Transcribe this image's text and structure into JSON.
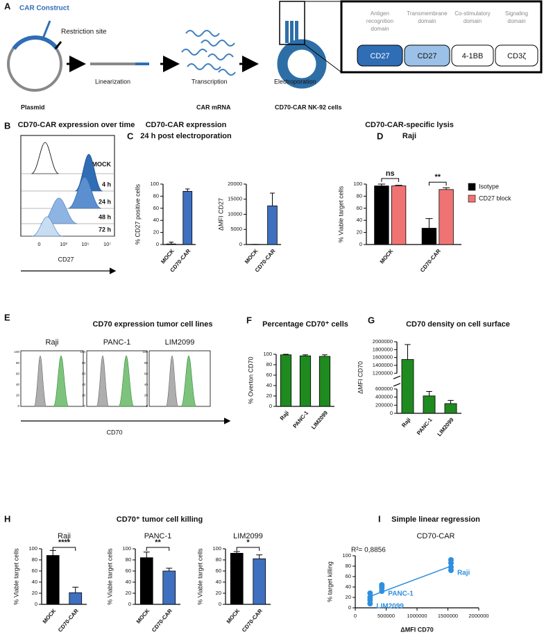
{
  "panels": [
    {
      "label": "A"
    },
    {
      "label": "B",
      "title": "CD70-CAR expression over time"
    },
    {
      "label": "C",
      "title": [
        "CD70-CAR expression",
        "24 h post electroporation"
      ]
    },
    {
      "label": "D",
      "title": "CD70-CAR-specific lysis",
      "subtitle": "Raji"
    },
    {
      "label": "E",
      "title": "CD70 expression tumor cell lines"
    },
    {
      "label": "F",
      "title": "Percentage CD70⁺ cells"
    },
    {
      "label": "G",
      "title": "CD70 density on cell surface"
    },
    {
      "label": "H",
      "title": "CD70⁺ tumor cell killing"
    },
    {
      "label": "I",
      "title": "Simple linear regression"
    }
  ],
  "diagram": {
    "construct": "CAR Construct",
    "restriction": "Restriction site",
    "steps": [
      "Linearization",
      "Transcription",
      "Electroporation"
    ],
    "stages": [
      "Plasmid",
      "CAR mRNA",
      "CD70-CAR NK-92 cells"
    ],
    "domains": [
      {
        "name": [
          "Antigen",
          "recognition",
          "domain"
        ],
        "box": "CD27"
      },
      {
        "name": [
          "Transmembrane",
          "domain"
        ],
        "box": "CD27"
      },
      {
        "name": [
          "Co-stimulatory",
          "domain"
        ],
        "box": "4-1BB"
      },
      {
        "name": [
          "Signaling",
          "domain"
        ],
        "box": "CD3ζ"
      }
    ]
  },
  "panel_b": {
    "rows": [
      "MOCK",
      "4 h",
      "24 h",
      "48 h",
      "72 h"
    ],
    "x_tick_labels": [
      "0",
      "10³",
      "10⁵",
      "10⁷"
    ],
    "xlabel": "CD27"
  },
  "panel_e": {
    "samples": [
      "Raji",
      "PANC-1",
      "LIM2099"
    ],
    "yticks": [
      0,
      20,
      40,
      60,
      80,
      100
    ],
    "xlabel": "CD70"
  },
  "chart_data": [
    {
      "type": "bar",
      "ylabel": "% CD27 positive cells",
      "categories": [
        "MOCK",
        "CD70-CAR"
      ],
      "values": [
        1,
        88
      ],
      "errors": [
        3,
        4
      ],
      "colors": [
        "#3f6fbf",
        "#3f6fbf"
      ],
      "ylim": [
        0,
        100
      ],
      "yticks": [
        0,
        20,
        40,
        60,
        80,
        100
      ]
    },
    {
      "type": "bar",
      "ylabel": "ΔMFI CD27",
      "categories": [
        "MOCK",
        "CD70-CAR"
      ],
      "values": [
        50,
        12800
      ],
      "errors": [
        0,
        4200
      ],
      "colors": [
        "#3f6fbf",
        "#3f6fbf"
      ],
      "ylim": [
        0,
        20000
      ],
      "yticks": [
        0,
        5000,
        10000,
        15000,
        20000
      ]
    },
    {
      "type": "grouped_bar",
      "ylabel": "% Viable target cells",
      "categories": [
        "MOCK",
        "CD70-CAR"
      ],
      "series": [
        {
          "name": "Isotype",
          "color": "#000000",
          "values": [
            97,
            27
          ],
          "errors": [
            3,
            16
          ]
        },
        {
          "name": "CD27 block",
          "color": "#f07373",
          "values": [
            97,
            91
          ],
          "errors": [
            1,
            3
          ]
        }
      ],
      "significance": [
        "ns",
        "**"
      ],
      "ylim": [
        0,
        100
      ],
      "yticks": [
        0,
        20,
        40,
        60,
        80,
        100
      ]
    },
    {
      "type": "bar",
      "ylabel": "% Overton CD70",
      "categories": [
        "Raji",
        "PANC-1",
        "LIM2099"
      ],
      "values": [
        99,
        97,
        96
      ],
      "errors": [
        1,
        2,
        3
      ],
      "colors": [
        "#1f8a1f",
        "#1f8a1f",
        "#1f8a1f"
      ],
      "ylim": [
        0,
        100
      ],
      "yticks": [
        0,
        20,
        40,
        60,
        80,
        100
      ]
    },
    {
      "type": "bar",
      "ylabel": "ΔMFI CD70",
      "categories": [
        "Raji",
        "PANC-1",
        "LIM2099"
      ],
      "values": [
        1550000,
        430000,
        240000
      ],
      "errors": [
        380000,
        110000,
        80000
      ],
      "colors": [
        "#1f8a1f",
        "#1f8a1f",
        "#1f8a1f"
      ],
      "ylim": [
        0,
        2000000
      ],
      "ybreak": [
        600000,
        1200000
      ],
      "yticks": [
        0,
        200000,
        400000,
        600000,
        1200000,
        1400000,
        1600000,
        1800000,
        2000000
      ]
    },
    {
      "type": "bar",
      "subtitle": "Raji",
      "ylabel": "% Viable target cells",
      "categories": [
        "MOCK",
        "CD70-CAR"
      ],
      "values": [
        88,
        21
      ],
      "errors": [
        9,
        10
      ],
      "colors": [
        "#000000",
        "#3f6fbf"
      ],
      "significance": "****",
      "ylim": [
        0,
        100
      ],
      "yticks": [
        0,
        20,
        40,
        60,
        80,
        100
      ]
    },
    {
      "type": "bar",
      "subtitle": "PANC-1",
      "ylabel": "% Viable target cells",
      "categories": [
        "MOCK",
        "CD70-CAR"
      ],
      "values": [
        84,
        60
      ],
      "errors": [
        10,
        5
      ],
      "colors": [
        "#000000",
        "#3f6fbf"
      ],
      "significance": "**",
      "ylim": [
        0,
        100
      ],
      "yticks": [
        0,
        20,
        40,
        60,
        80,
        100
      ]
    },
    {
      "type": "bar",
      "subtitle": "LIM2099",
      "ylabel": "% Viable target cells",
      "categories": [
        "MOCK",
        "CD70-CAR"
      ],
      "values": [
        92,
        82
      ],
      "errors": [
        3,
        7
      ],
      "colors": [
        "#000000",
        "#3f6fbf"
      ],
      "significance": "*",
      "ylim": [
        0,
        100
      ],
      "yticks": [
        0,
        20,
        40,
        60,
        80,
        100
      ]
    },
    {
      "type": "scatter",
      "subtitle": "CD70-CAR",
      "annotation": "R²= 0,8856",
      "xlabel": "ΔMFI CD70",
      "ylabel": "% target killing",
      "color": "#2f8fdf",
      "series": [
        {
          "name": "LIM2099",
          "x": [
            240000,
            240000,
            240000,
            240000
          ],
          "y": [
            8,
            15,
            20,
            28
          ]
        },
        {
          "name": "PANC-1",
          "x": [
            430000,
            430000,
            430000,
            430000
          ],
          "y": [
            32,
            38,
            42,
            44
          ]
        },
        {
          "name": "Raji",
          "x": [
            1550000,
            1550000,
            1550000,
            1550000
          ],
          "y": [
            72,
            78,
            86,
            92
          ]
        }
      ],
      "fit": {
        "x": [
          240000,
          1550000
        ],
        "y": [
          22,
          80
        ]
      },
      "xlim": [
        0,
        2000000
      ],
      "xticks": [
        0,
        500000,
        1000000,
        1500000,
        2000000
      ],
      "ylim": [
        0,
        100
      ],
      "yticks": [
        0,
        20,
        40,
        60,
        80,
        100
      ]
    }
  ]
}
